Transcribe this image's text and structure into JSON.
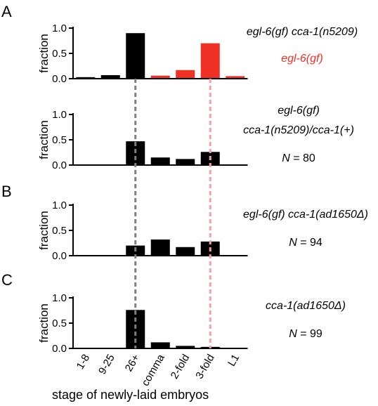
{
  "chart_data": {
    "type": "bar",
    "categories": [
      "1-8",
      "9-25",
      "26+",
      "comma",
      "2-fold",
      "3-fold",
      "L1"
    ],
    "xlabel": "stage of newly-laid embryos",
    "reference_lines": [
      {
        "category": "26+",
        "color": "#7f7f7f",
        "style": "dashed"
      },
      {
        "category": "3-fold",
        "color": "#f2a39d",
        "style": "dashed"
      }
    ],
    "panels": [
      {
        "letter": "A",
        "ylabel": "fraction",
        "ylim": [
          0,
          1.0
        ],
        "yticks": [
          "0.0",
          "0.5",
          "1.0"
        ],
        "series": [
          {
            "name": "egl-6(gf) cca-1(n5209)",
            "color": "#000000",
            "values": [
              0.03,
              0.07,
              0.9,
              0.0,
              0.0,
              0.0,
              0.0
            ]
          },
          {
            "name": "egl-6(gf)",
            "color": "#ee3124",
            "values": [
              0.0,
              0.0,
              0.0,
              0.06,
              0.17,
              0.7,
              0.05
            ]
          }
        ],
        "legend": [
          {
            "lines": [
              "egl-6(gf) cca-1(n5209)"
            ],
            "color": "#000000"
          },
          {
            "lines": [
              "egl-6(gf)"
            ],
            "color": "#ee3124"
          }
        ]
      },
      {
        "letter": "",
        "ylabel": "fraction",
        "ylim": [
          0,
          1.0
        ],
        "yticks": [
          "0.0",
          "0.5",
          "1.0"
        ],
        "series": [
          {
            "name": "egl-6(gf) cca-1(n5209)/cca-1(+)",
            "color": "#000000",
            "values": [
              0.0,
              0.0,
              0.47,
              0.15,
              0.12,
              0.26,
              0.0
            ]
          }
        ],
        "legend": [
          {
            "lines": [
              "egl-6(gf)",
              "cca-1(n5209)/cca-1(+)"
            ],
            "n_label": "N",
            "n_value": "= 80",
            "color": "#000000"
          }
        ]
      },
      {
        "letter": "B",
        "ylabel": "fraction",
        "ylim": [
          0,
          1.0
        ],
        "yticks": [
          "0.0",
          "0.5",
          "1.0"
        ],
        "series": [
          {
            "name": "egl-6(gf) cca-1(ad1650Δ)",
            "color": "#000000",
            "values": [
              0.0,
              0.0,
              0.2,
              0.32,
              0.17,
              0.28,
              0.0
            ]
          }
        ],
        "legend": [
          {
            "lines": [
              "egl-6(gf) cca-1(ad1650Δ)"
            ],
            "n_label": "N",
            "n_value": "= 94",
            "color": "#000000"
          }
        ]
      },
      {
        "letter": "C",
        "ylabel": "fraction",
        "ylim": [
          0,
          1.0
        ],
        "yticks": [
          "0.0",
          "0.5",
          "1.0"
        ],
        "series": [
          {
            "name": "cca-1(ad1650Δ)",
            "color": "#000000",
            "values": [
              0.0,
              0.0,
              0.76,
              0.12,
              0.05,
              0.03,
              0.0
            ]
          }
        ],
        "legend": [
          {
            "lines": [
              "cca-1(ad1650Δ)"
            ],
            "n_label": "N",
            "n_value": "= 99",
            "color": "#000000"
          }
        ]
      }
    ]
  }
}
